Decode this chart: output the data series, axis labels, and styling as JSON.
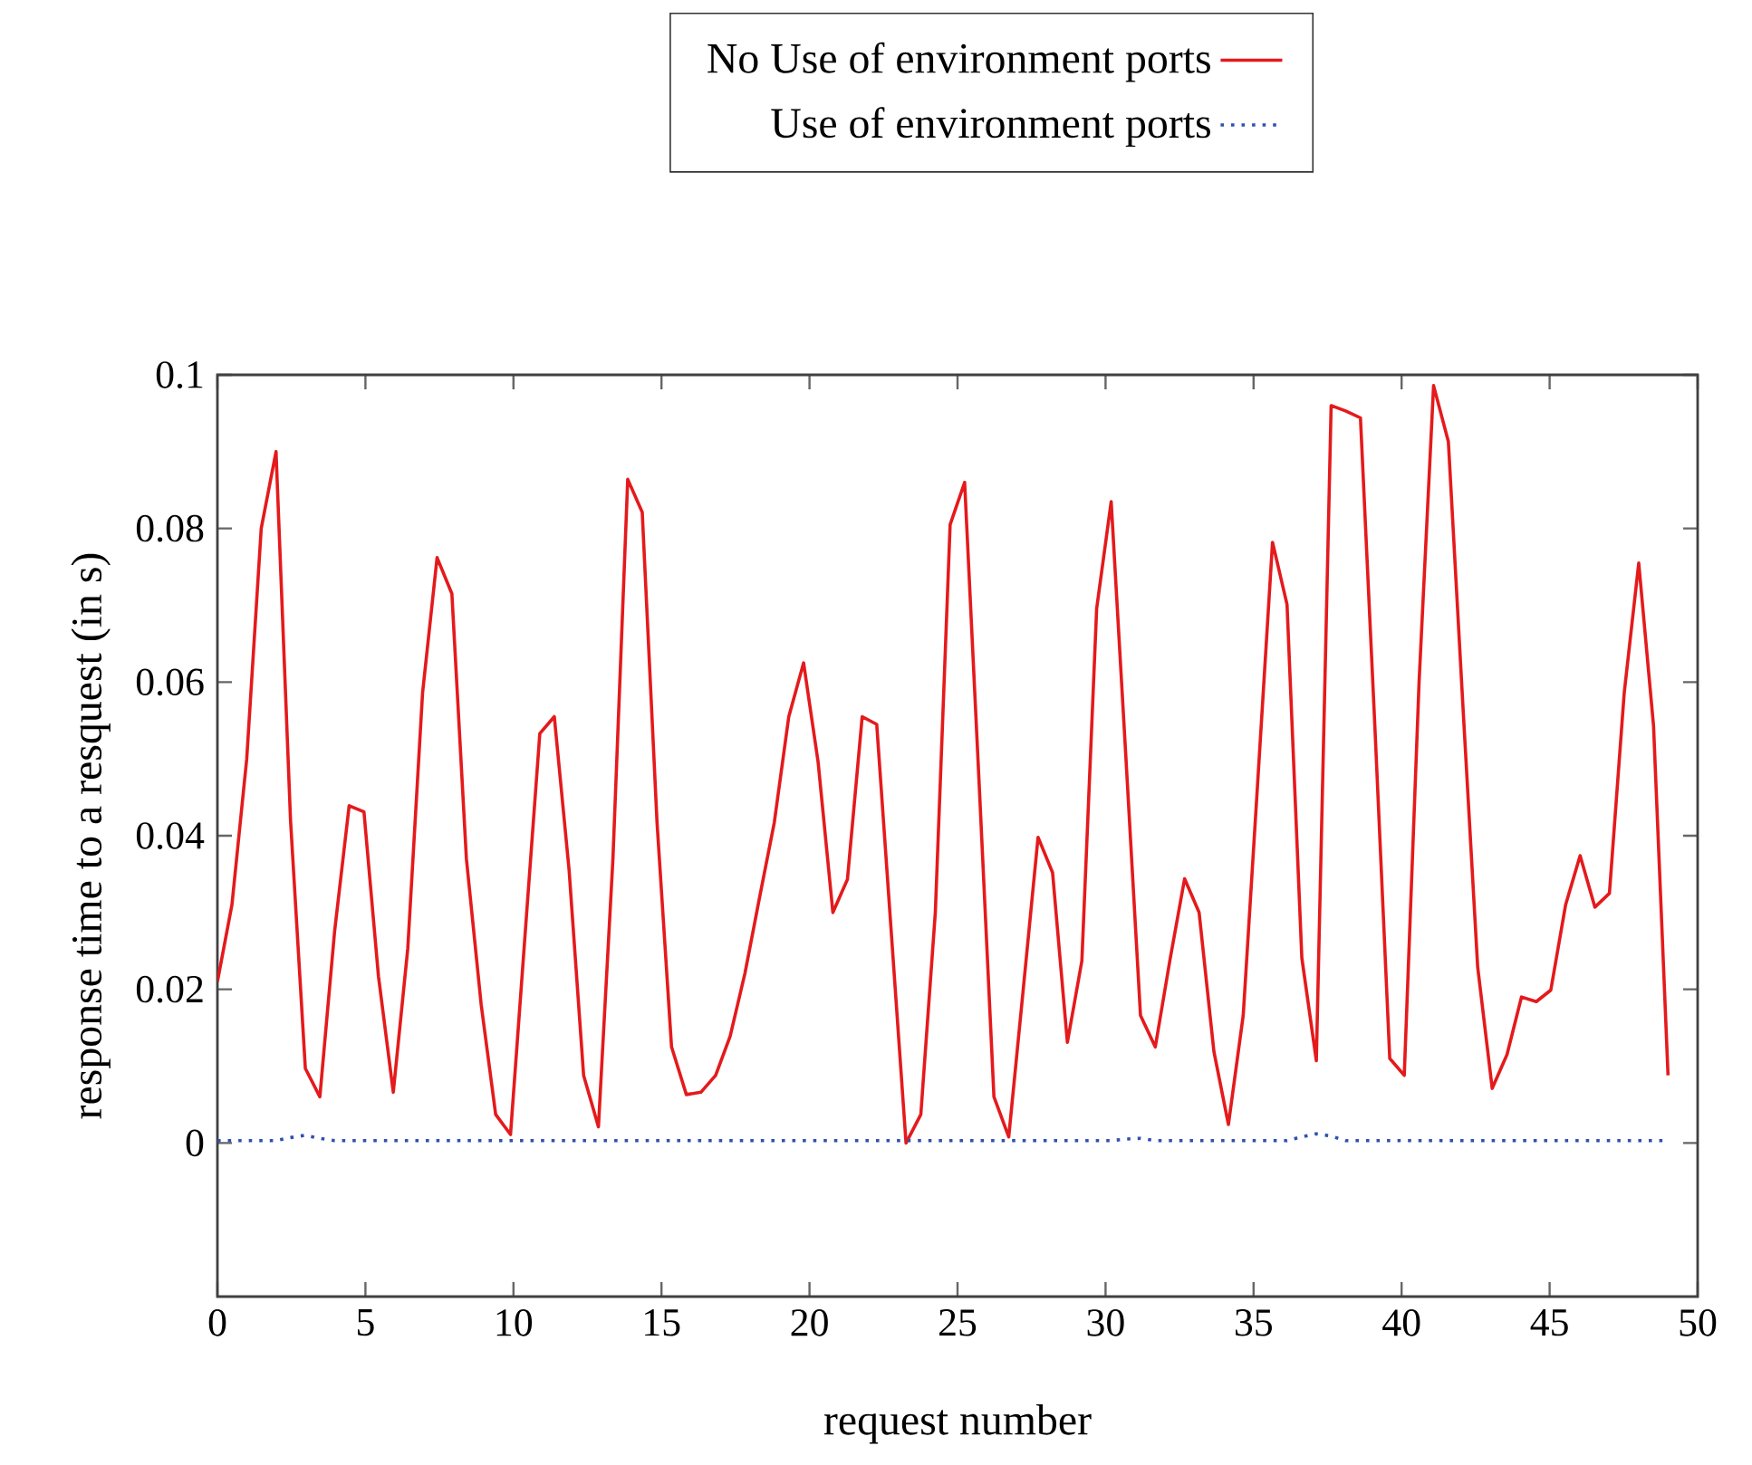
{
  "chart_data": {
    "type": "line",
    "xlabel": "request number",
    "ylabel": "response time to a resquest (in s)",
    "x": [
      0,
      0.49,
      0.99,
      1.48,
      1.98,
      2.47,
      2.97,
      3.46,
      3.96,
      4.45,
      4.95,
      5.44,
      5.94,
      6.43,
      6.93,
      7.42,
      7.92,
      8.41,
      8.91,
      9.4,
      9.9,
      10.39,
      10.89,
      11.38,
      11.88,
      12.37,
      12.87,
      13.36,
      13.86,
      14.35,
      14.85,
      15.34,
      15.84,
      16.33,
      16.83,
      17.32,
      17.82,
      18.31,
      18.81,
      19.3,
      19.8,
      20.29,
      20.79,
      21.28,
      21.78,
      22.27,
      22.77,
      23.26,
      23.76,
      24.25,
      24.75,
      25.24,
      25.74,
      26.23,
      26.73,
      27.22,
      27.72,
      28.21,
      28.71,
      29.2,
      29.7,
      30.19,
      30.69,
      31.18,
      31.68,
      32.17,
      32.67,
      33.16,
      33.66,
      34.15,
      34.65,
      35.14,
      35.64,
      36.13,
      36.63,
      37.12,
      37.62,
      38.11,
      38.61,
      39.1,
      39.6,
      40.09,
      40.59,
      41.08,
      41.58,
      42.07,
      42.57,
      43.06,
      43.56,
      44.05,
      44.55,
      45.04,
      45.54,
      46.03,
      46.53,
      47.02,
      47.52,
      48.01,
      48.51,
      49
    ],
    "series": [
      {
        "name": "No Use of environment ports",
        "color": "#e41a1c",
        "line_style": "solid",
        "values": [
          0.021,
          0.031,
          0.05,
          0.08,
          0.09,
          0.042,
          0.0097,
          0.006,
          0.0276,
          0.0439,
          0.0431,
          0.0217,
          0.0066,
          0.0253,
          0.0586,
          0.0762,
          0.0715,
          0.037,
          0.018,
          0.0037,
          0.0011,
          0.027,
          0.0533,
          0.0555,
          0.0355,
          0.0088,
          0.0021,
          0.037,
          0.0864,
          0.0821,
          0.0417,
          0.0125,
          0.0063,
          0.0066,
          0.0088,
          0.0139,
          0.0221,
          0.0319,
          0.0417,
          0.0555,
          0.0625,
          0.0496,
          0.03,
          0.0343,
          0.0555,
          0.0545,
          0.027,
          0,
          0.0037,
          0.03,
          0.0805,
          0.086,
          0.046,
          0.006,
          0.0008,
          0.02,
          0.0398,
          0.0352,
          0.0131,
          0.0237,
          0.0696,
          0.0835,
          0.05,
          0.0166,
          0.0125,
          0.0237,
          0.0344,
          0.03,
          0.0119,
          0.0024,
          0.0166,
          0.047,
          0.0782,
          0.0701,
          0.0241,
          0.0107,
          0.096,
          0.0953,
          0.0944,
          0.054,
          0.011,
          0.0088,
          0.06,
          0.0986,
          0.0913,
          0.057,
          0.0229,
          0.0071,
          0.0115,
          0.019,
          0.0184,
          0.0199,
          0.031,
          0.0374,
          0.0307,
          0.0325,
          0.0586,
          0.0755,
          0.0543,
          0.0088
        ]
      },
      {
        "name": "Use of environment ports",
        "color": "#3050b0",
        "line_style": "dotted",
        "values": [
          0.0003,
          0.0003,
          0.0003,
          0.0003,
          0.0003,
          0.0007,
          0.001,
          0.0006,
          0.0003,
          0.0003,
          0.0003,
          0.0003,
          0.0003,
          0.0003,
          0.0003,
          0.0003,
          0.0003,
          0.0003,
          0.0003,
          0.0003,
          0.0003,
          0.0003,
          0.0003,
          0.0003,
          0.0003,
          0.0003,
          0.0003,
          0.0003,
          0.0003,
          0.0003,
          0.0003,
          0.0003,
          0.0003,
          0.0003,
          0.0003,
          0.0003,
          0.0003,
          0.0003,
          0.0003,
          0.0003,
          0.0003,
          0.0003,
          0.0003,
          0.0003,
          0.0003,
          0.0003,
          0.0003,
          0.0003,
          0.0003,
          0.0003,
          0.0003,
          0.0003,
          0.0003,
          0.0003,
          0.0003,
          0.0003,
          0.0003,
          0.0003,
          0.0003,
          0.0003,
          0.0003,
          0.0003,
          0.0005,
          0.0006,
          0.0003,
          0.0003,
          0.0003,
          0.0003,
          0.0003,
          0.0003,
          0.0003,
          0.0003,
          0.0003,
          0.0003,
          0.0008,
          0.0012,
          0.0009,
          0.0003,
          0.0003,
          0.0003,
          0.0003,
          0.0003,
          0.0003,
          0.0003,
          0.0003,
          0.0003,
          0.0003,
          0.0003,
          0.0003,
          0.0003,
          0.0003,
          0.0003,
          0.0003,
          0.0003,
          0.0003,
          0.0003,
          0.0003,
          0.0003,
          0.0003,
          0.0003
        ]
      }
    ],
    "xlim": [
      0,
      50
    ],
    "ylim": [
      -0.02,
      0.1
    ],
    "xticks": [
      0,
      5,
      10,
      15,
      20,
      25,
      30,
      35,
      40,
      45,
      50
    ],
    "yticks": [
      0,
      0.02,
      0.04,
      0.06,
      0.08,
      0.1
    ],
    "marker": "none",
    "grid": false,
    "legend": "top"
  }
}
